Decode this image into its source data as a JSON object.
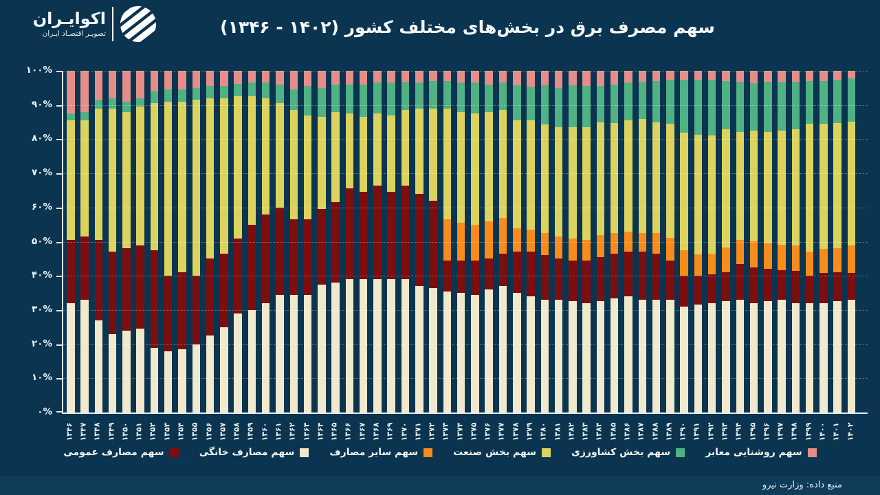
{
  "header": {
    "logo": {
      "name": "اکوایـران",
      "tagline": "تصویـر اقتصـاد ایـران"
    },
    "title": "سهم مصرف برق در بخش‌های مختلف کشور (۱۴۰۲ - ۱۳۴۶)"
  },
  "footer": {
    "source": "منبع داده: وزارت نیرو"
  },
  "colors": {
    "background": "#0a344f",
    "footer_background": "#0e3d5a",
    "axis": "#e5edf2",
    "gridline": "rgba(255,255,255,0.30)",
    "text": "#f2f7fa"
  },
  "chart_data": {
    "type": "bar",
    "stacked": true,
    "percent_stack": true,
    "grid": true,
    "legend_position": "bottom",
    "ylim": [
      0,
      100
    ],
    "y_tick_labels": [
      "۰%",
      "۱۰%",
      "۲۰%",
      "۳۰%",
      "۴۰%",
      "۵۰%",
      "۶۰%",
      "۷۰%",
      "۸۰%",
      "۹۰%",
      "۱۰۰%"
    ],
    "categories": [
      "۱۳۴۶",
      "۱۳۴۷",
      "۱۳۴۸",
      "۱۳۴۹",
      "۱۳۵۰",
      "۱۳۵۱",
      "۱۳۵۲",
      "۱۳۵۳",
      "۱۳۵۴",
      "۱۳۵۵",
      "۱۳۵۶",
      "۱۳۵۷",
      "۱۳۵۸",
      "۱۳۵۹",
      "۱۳۶۰",
      "۱۳۶۱",
      "۱۳۶۲",
      "۱۳۶۳",
      "۱۳۶۴",
      "۱۳۶۵",
      "۱۳۶۶",
      "۱۳۶۷",
      "۱۳۶۸",
      "۱۳۶۹",
      "۱۳۷۰",
      "۱۳۷۱",
      "۱۳۷۲",
      "۱۳۷۳",
      "۱۳۷۴",
      "۱۳۷۵",
      "۱۳۷۶",
      "۱۳۷۷",
      "۱۳۷۸",
      "۱۳۷۹",
      "۱۳۸۰",
      "۱۳۸۱",
      "۱۳۸۲",
      "۱۳۸۳",
      "۱۳۸۴",
      "۱۳۸۵",
      "۱۳۸۶",
      "۱۳۸۷",
      "۱۳۸۸",
      "۱۳۸۹",
      "۱۳۹۰",
      "۱۳۹۱",
      "۱۳۹۲",
      "۱۳۹۳",
      "۱۳۹۴",
      "۱۳۹۵",
      "۱۳۹۶",
      "۱۳۹۷",
      "۱۳۹۸",
      "۱۳۹۹",
      "۱۴۰۰",
      "۱۴۰۱",
      "۱۴۰۲"
    ],
    "years": [
      1346,
      1347,
      1348,
      1349,
      1350,
      1351,
      1352,
      1353,
      1354,
      1355,
      1356,
      1357,
      1358,
      1359,
      1360,
      1361,
      1362,
      1363,
      1364,
      1365,
      1366,
      1367,
      1368,
      1369,
      1370,
      1371,
      1372,
      1373,
      1374,
      1375,
      1376,
      1377,
      1378,
      1379,
      1380,
      1381,
      1382,
      1383,
      1384,
      1385,
      1386,
      1387,
      1388,
      1389,
      1390,
      1391,
      1392,
      1393,
      1394,
      1395,
      1396,
      1397,
      1398,
      1399,
      1400,
      1401,
      1402
    ],
    "series": [
      {
        "key": "household",
        "name": "سهم مصارف خانگی",
        "color": "#f0e9cd",
        "values": [
          32,
          33,
          27,
          23,
          24,
          24.5,
          19,
          18,
          18.5,
          20,
          22.5,
          25,
          29,
          30,
          32,
          34.5,
          34.5,
          34.5,
          37.5,
          38,
          39,
          39,
          39,
          39,
          39,
          37,
          36.5,
          35.5,
          35,
          34.5,
          36,
          37,
          35,
          34,
          33,
          33,
          32.5,
          32,
          32.5,
          33.5,
          34,
          33,
          33,
          33,
          31,
          31.5,
          32,
          32.5,
          33,
          32,
          32.5,
          33,
          32,
          32,
          32,
          32.5,
          33
        ]
      },
      {
        "key": "public",
        "name": "سهم مصارف عمومی",
        "color": "#7c0e10",
        "values": [
          18.5,
          18.5,
          23.5,
          24,
          24,
          24.5,
          28.5,
          22,
          22.5,
          20,
          22.5,
          21.5,
          22,
          25,
          26,
          25.5,
          22,
          22,
          22,
          23.5,
          26.5,
          25.5,
          27.5,
          25.5,
          27.5,
          27,
          25.5,
          9,
          9.5,
          10,
          9,
          9.5,
          12,
          13,
          13,
          12,
          12,
          12.5,
          13,
          13,
          13,
          14,
          13.5,
          11.5,
          9,
          8.6,
          8.5,
          8.6,
          10.5,
          10.5,
          9.6,
          8.7,
          9.5,
          8,
          8.8,
          8.6,
          7.8
        ]
      },
      {
        "key": "other",
        "name": "سهم سایر مصارف",
        "color": "#f78c1b",
        "values": [
          0,
          0,
          0,
          0,
          0,
          0,
          0,
          0,
          0,
          0,
          0,
          0,
          0,
          0,
          0,
          0,
          0,
          0,
          0,
          0,
          0,
          0,
          0,
          0,
          0,
          0,
          0,
          12,
          11,
          10.5,
          11,
          10.5,
          7,
          6.5,
          6.5,
          6.5,
          6.5,
          6,
          6.4,
          6,
          6,
          5.5,
          6,
          6.7,
          7.4,
          6.1,
          6,
          7.1,
          7,
          7.7,
          7.4,
          7.4,
          7.4,
          7,
          7,
          6.9,
          8
        ]
      },
      {
        "key": "industry",
        "name": "سهم بخش صنعت",
        "color": "#dcd35f",
        "values": [
          35,
          34,
          38.5,
          42,
          40,
          40.5,
          43,
          51,
          50,
          51.5,
          47,
          45.5,
          41.5,
          37.5,
          34,
          30.5,
          32,
          30.5,
          27,
          26.5,
          22,
          22,
          21,
          22.5,
          22,
          25,
          27,
          32.5,
          32.5,
          32.5,
          32,
          31.5,
          31.5,
          32,
          31.9,
          32,
          32.5,
          33,
          33,
          32.3,
          32.5,
          33.5,
          32.5,
          33.3,
          34.6,
          35,
          34.6,
          34.7,
          31.7,
          32.4,
          32.7,
          33.5,
          34,
          37.5,
          36.7,
          36.7,
          36.4
        ]
      },
      {
        "key": "agriculture",
        "name": "سهم بخش کشاورزی",
        "color": "#4fb184",
        "values": [
          2,
          2.5,
          2.5,
          3,
          3,
          2.5,
          3.5,
          3.5,
          3.5,
          3.5,
          3.5,
          3.5,
          3.7,
          4,
          4.6,
          5.5,
          6,
          8.5,
          8.5,
          8,
          8.5,
          9.5,
          9,
          9.5,
          8.2,
          7.6,
          8,
          8,
          8.5,
          9,
          8,
          8,
          10.2,
          9.9,
          11.3,
          11.5,
          12.2,
          12,
          10.6,
          11.2,
          11,
          10.7,
          12,
          12.9,
          15.4,
          16.2,
          16.3,
          14.1,
          14.5,
          13.8,
          14.5,
          14.1,
          13.8,
          12.5,
          12.5,
          12.7,
          12.5
        ]
      },
      {
        "key": "lighting",
        "name": "سهم روشنایی معابر",
        "color": "#e48e8a",
        "values": [
          12.5,
          12,
          8.5,
          8,
          9,
          8,
          6,
          5.5,
          5.5,
          5,
          4.5,
          4.5,
          3.8,
          3.5,
          3.4,
          4,
          5.5,
          4.5,
          5,
          4,
          4,
          4,
          3.5,
          3.5,
          3.3,
          3.4,
          3,
          3,
          3.5,
          3.5,
          4,
          3.5,
          4.3,
          4.6,
          4.3,
          5,
          4.3,
          4.5,
          4.5,
          4,
          3.5,
          3.3,
          3,
          2.6,
          2.6,
          2.6,
          2.6,
          3,
          3.3,
          3.6,
          3.3,
          3.3,
          3.3,
          3,
          3,
          2.6,
          2.3
        ]
      }
    ],
    "legend_display_order": [
      "public",
      "household",
      "other",
      "industry",
      "agriculture",
      "lighting"
    ]
  }
}
